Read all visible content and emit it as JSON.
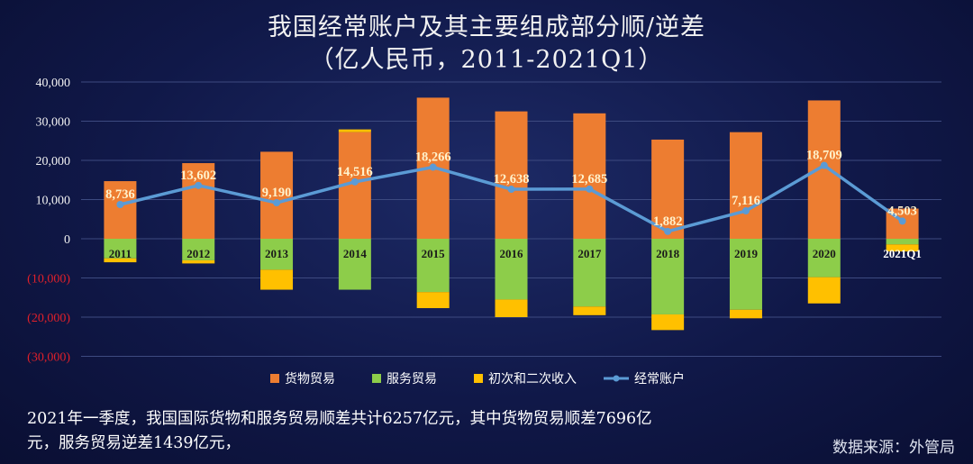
{
  "title_line1": "我国经常账户及其主要组成部分顺/逆差",
  "title_line2": "（亿人民币，2011-2021Q1）",
  "note_line1": "2021年一季度，我国国际货物和服务贸易顺差共计6257亿元，其中货物贸易顺差7696亿",
  "note_line2": "元，服务贸易逆差1439亿元，",
  "source": "数据来源：外管局",
  "colors": {
    "goods": "#ed7d31",
    "services": "#8dcd4a",
    "income": "#ffc000",
    "current_account": "#5b9bd5",
    "label_yellow": "#fff2cc",
    "negative_tick": "#e0202a"
  },
  "chart_data": {
    "type": "bar",
    "stacked": true,
    "categories": [
      "2011",
      "2012",
      "2013",
      "2014",
      "2015",
      "2016",
      "2017",
      "2018",
      "2019",
      "2020",
      "2021Q1"
    ],
    "series": [
      {
        "name": "货物贸易",
        "kind": "bar",
        "values": [
          14700,
          19300,
          22200,
          27200,
          36000,
          32500,
          32000,
          25300,
          27200,
          35300,
          7696
        ]
      },
      {
        "name": "服务贸易",
        "kind": "bar",
        "values": [
          -5000,
          -5500,
          -7900,
          -13000,
          -13600,
          -15500,
          -17300,
          -19300,
          -18100,
          -9800,
          -1439
        ]
      },
      {
        "name": "初次和二次收入",
        "kind": "bar",
        "values": [
          -1000,
          -800,
          -5100,
          700,
          -4100,
          -4500,
          -2200,
          -4000,
          -2200,
          -6700,
          -1800
        ]
      },
      {
        "name": "经常账户",
        "kind": "line",
        "values": [
          8736,
          13602,
          9190,
          14516,
          18266,
          12638,
          12685,
          1882,
          7116,
          18709,
          4503
        ]
      }
    ],
    "line_labels": [
      "8,736",
      "13,602",
      "9,190",
      "14,516",
      "18,266",
      "12,638",
      "12,685",
      "1,882",
      "7,116",
      "18,709",
      "4,503"
    ],
    "yticks": [
      40000,
      30000,
      20000,
      10000,
      0,
      -10000,
      -20000,
      -30000
    ],
    "ytick_labels": [
      "40,000",
      "30,000",
      "20,000",
      "10,000",
      "0",
      "(10,000)",
      "(20,000)",
      "(30,000)"
    ],
    "ylim": [
      -30000,
      40000
    ],
    "grid": true,
    "legend_position": "bottom"
  }
}
